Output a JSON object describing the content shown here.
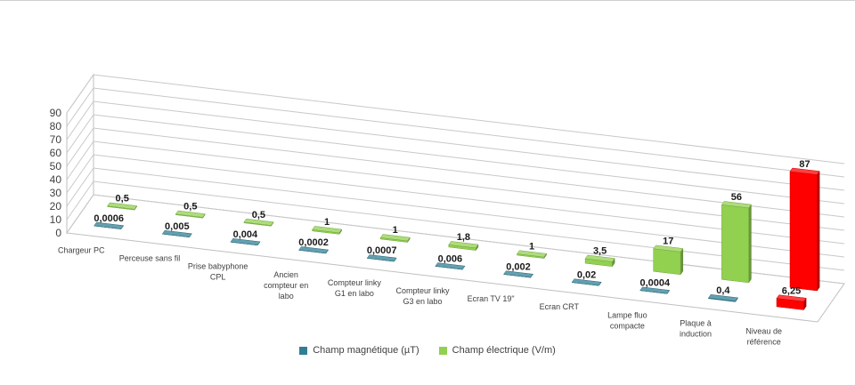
{
  "chart_data": {
    "type": "bar",
    "categories": [
      "Chargeur PC",
      "Perceuse sans fil",
      "Prise babyphone\nCPL",
      "Ancien\ncompteur en\nlabo",
      "Compteur linky\nG1 en labo",
      "Compteur linky\nG3 en labo",
      "Ecran TV 19\"",
      "Ecran CRT",
      "Lampe fluo\ncompacte",
      "Plaque à\ninduction",
      "Niveau de\nréférence"
    ],
    "series": [
      {
        "name": "Champ magnétique (µT)",
        "color": "#2f7f94",
        "values": [
          0.0006,
          0.005,
          0.004,
          0.0002,
          0.0007,
          0.006,
          0.002,
          0.02,
          0.0004,
          0.4,
          6.25
        ],
        "labels": [
          "0,0006",
          "0,005",
          "0,004",
          "0,0002",
          "0,0007",
          "0,006",
          "0,002",
          "0,02",
          "0,0004",
          "0,4",
          "6,25"
        ]
      },
      {
        "name": "Champ électrique (V/m)",
        "color": "#92d050",
        "values": [
          0.5,
          0.5,
          0.5,
          1,
          1,
          1.8,
          1,
          3.5,
          17,
          56,
          87
        ],
        "labels": [
          "0,5",
          "0,5",
          "0,5",
          "1",
          "1",
          "1,8",
          "1",
          "3,5",
          "17",
          "56",
          "87"
        ]
      }
    ],
    "highlight": {
      "category_index": 10,
      "color": "#ff0000"
    },
    "ylim": [
      0,
      90
    ],
    "yticks": [
      "0",
      "10",
      "20",
      "30",
      "40",
      "50",
      "60",
      "70",
      "80",
      "90"
    ],
    "grid": true,
    "legend_position": "bottom",
    "title": "",
    "xlabel": "",
    "ylabel": ""
  }
}
